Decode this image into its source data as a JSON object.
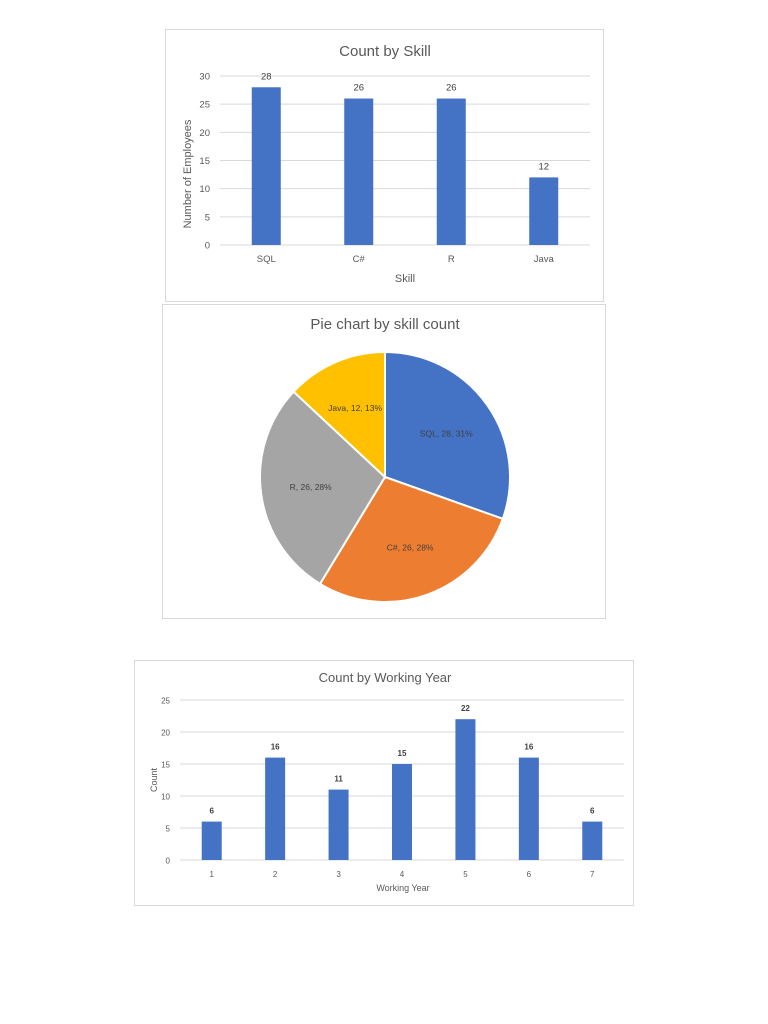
{
  "chart_data": [
    {
      "type": "bar",
      "title": "Count by Skill",
      "xlabel": "Skill",
      "ylabel": "Number of Employees",
      "categories": [
        "SQL",
        "C#",
        "R",
        "Java"
      ],
      "values": [
        28,
        26,
        26,
        12
      ],
      "ylim": [
        0,
        30
      ],
      "yticks": [
        0,
        5,
        10,
        15,
        20,
        25,
        30
      ],
      "grid": true,
      "data_labels": true,
      "color": "#4472C4"
    },
    {
      "type": "pie",
      "title": "Pie chart by skill count",
      "categories": [
        "SQL",
        "C#",
        "R",
        "Java"
      ],
      "values": [
        28,
        26,
        26,
        12
      ],
      "percentages": [
        31,
        28,
        28,
        13
      ],
      "labels": [
        "SQL, 28, 31%",
        "C#, 26, 28%",
        "R, 26, 28%",
        "Java, 12, 13%"
      ],
      "colors": [
        "#4472C4",
        "#ED7D31",
        "#A5A5A5",
        "#FFC000"
      ]
    },
    {
      "type": "bar",
      "title": "Count by Working Year",
      "xlabel": "Working Year",
      "ylabel": "Count",
      "categories": [
        "1",
        "2",
        "3",
        "4",
        "5",
        "6",
        "7"
      ],
      "values": [
        6,
        16,
        11,
        15,
        22,
        16,
        6
      ],
      "ylim": [
        0,
        25
      ],
      "yticks": [
        0,
        5,
        10,
        15,
        20,
        25
      ],
      "grid": true,
      "data_labels": true,
      "color": "#4472C4"
    }
  ]
}
